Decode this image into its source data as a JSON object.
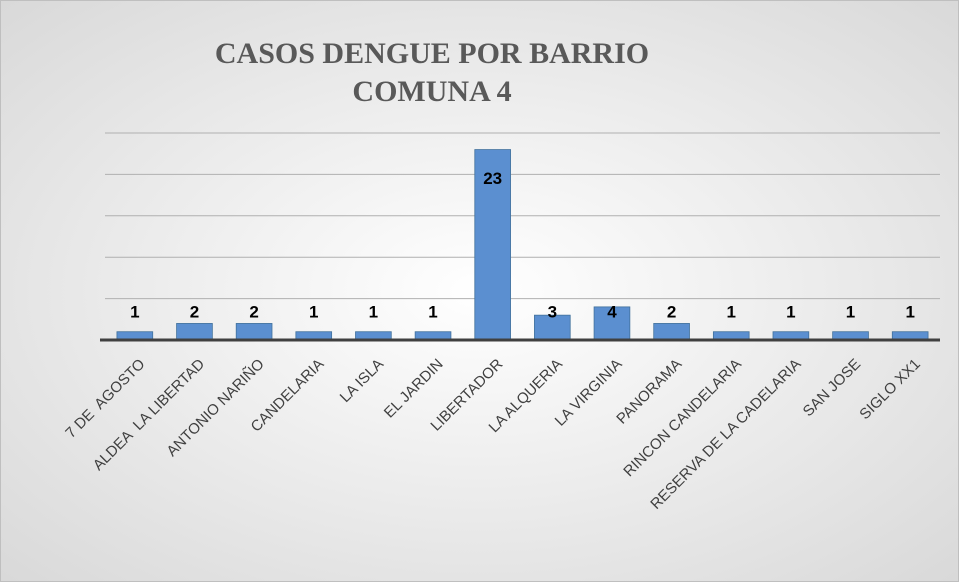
{
  "chart_data": {
    "type": "bar",
    "title_lines": [
      "CASOS DENGUE POR BARRIO",
      "COMUNA 4"
    ],
    "categories": [
      "7 DE  AGOSTO",
      "ALDEA  LA LIBERTAD",
      "ANTONIO NARIÑO",
      "CANDELARIA",
      "LA ISLA",
      "EL JARDIN",
      "LIBERTADOR",
      "LA ALQUERIA",
      "LA VIRGINIA",
      "PANORAMA",
      "RINCON CANDELARIA",
      "RESERVA DE LA CADELARIA",
      "SAN JOSE",
      "SIGLO XX1"
    ],
    "values": [
      1,
      2,
      2,
      1,
      1,
      1,
      23,
      3,
      4,
      2,
      1,
      1,
      1,
      1
    ],
    "color": "#5b8fd0",
    "ylim": [
      0,
      25
    ],
    "yticks": [
      0,
      5,
      10,
      15,
      20,
      25
    ],
    "grid": true
  }
}
